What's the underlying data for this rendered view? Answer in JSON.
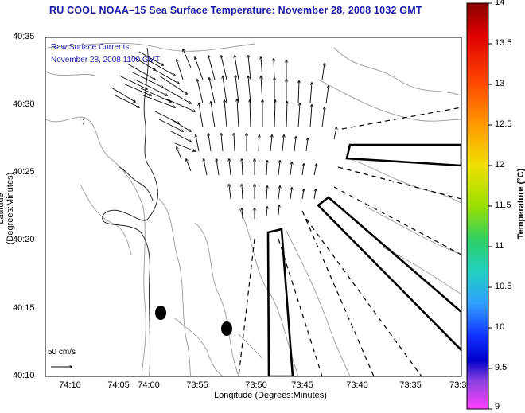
{
  "title": "RU COOL  NOAA–15  Sea Surface Temperature:  November 28, 2008 1032 GMT",
  "legend": {
    "line1": "Raw Surface Currents",
    "line2": "November 28, 2008 1100 GMT"
  },
  "axes": {
    "xlabel": "Longitude (Degrees:Minutes)",
    "ylabel": "Latitude (Degrees:Minutes)",
    "xticks": [
      "74:10",
      "74:05",
      "74:00",
      "73:55",
      "73:50",
      "73:45",
      "73:40",
      "73:35",
      "73:3"
    ],
    "yticks": [
      "40:35",
      "40:30",
      "40:25",
      "40:20",
      "40:15",
      "40:10"
    ]
  },
  "colorbar": {
    "label": "Temperature (°C)",
    "ticks": [
      "14",
      "13.5",
      "13",
      "12.5",
      "12",
      "11.5",
      "11",
      "10.5",
      "10",
      "9.5",
      "9"
    ],
    "min": 9,
    "max": 14
  },
  "scale_label": "50 cm/s",
  "colors": {
    "title": "#1a1aa8",
    "frame": "#000000",
    "contour": "#9a9a9a"
  }
}
